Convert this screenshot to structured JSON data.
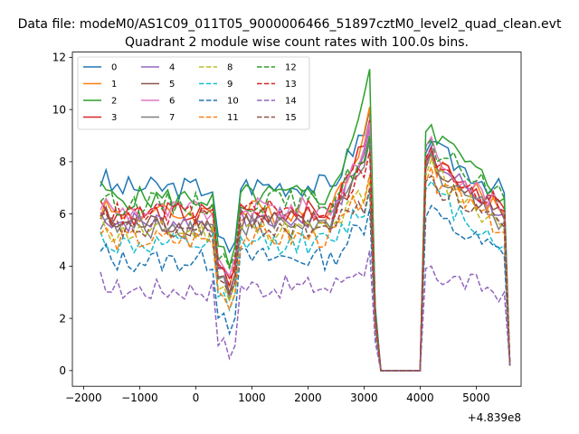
{
  "figure": {
    "suptitle": "Data file: modeM0/AS1C09_011T05_9000006466_51897cztM0_level2_quad_clean.evt",
    "offset_label": "+4.839e8"
  },
  "chart_data": {
    "type": "line",
    "title": "Quadrant 2 module wise count rates with 100.0s bins.",
    "xlabel": "",
    "ylabel": "",
    "xlim": [
      -2200,
      5800
    ],
    "ylim": [
      -0.6,
      12.2
    ],
    "x_offset": 483900000,
    "xticks": [
      -2000,
      -1000,
      0,
      1000,
      2000,
      3000,
      4000,
      5000
    ],
    "xtick_labels": [
      "−2000",
      "−1000",
      "0",
      "1000",
      "2000",
      "3000",
      "4000",
      "5000"
    ],
    "yticks": [
      0,
      2,
      4,
      6,
      8,
      10,
      12
    ],
    "ytick_labels": [
      "0",
      "2",
      "4",
      "6",
      "8",
      "10",
      "12"
    ],
    "legend": {
      "placement": "top-left",
      "columns": 4
    },
    "grid": false,
    "series": [
      {
        "name": "0",
        "color": "#1f77b4",
        "dash": "solid",
        "base": 7.0,
        "peak": 10.0,
        "rebound": 8.5,
        "end": 6.8
      },
      {
        "name": "1",
        "color": "#ff7f0e",
        "dash": "solid",
        "base": 6.0,
        "peak": 10.1,
        "rebound": 8.0,
        "end": 6.0
      },
      {
        "name": "2",
        "color": "#2ca02c",
        "dash": "solid",
        "base": 6.6,
        "peak": 11.55,
        "rebound": 9.2,
        "end": 6.6
      },
      {
        "name": "3",
        "color": "#d62728",
        "dash": "solid",
        "base": 6.0,
        "peak": 9.6,
        "rebound": 8.2,
        "end": 6.2
      },
      {
        "name": "4",
        "color": "#9467bd",
        "dash": "solid",
        "base": 5.7,
        "peak": 9.3,
        "rebound": 8.0,
        "end": 6.0
      },
      {
        "name": "5",
        "color": "#8c564b",
        "dash": "solid",
        "base": 5.6,
        "peak": 9.0,
        "rebound": 7.8,
        "end": 5.8
      },
      {
        "name": "6",
        "color": "#e377c2",
        "dash": "solid",
        "base": 6.1,
        "peak": 9.5,
        "rebound": 8.4,
        "end": 6.1
      },
      {
        "name": "7",
        "color": "#7f7f7f",
        "dash": "solid",
        "base": 5.5,
        "peak": 8.8,
        "rebound": 7.8,
        "end": 5.7
      },
      {
        "name": "8",
        "color": "#bcbd22",
        "dash": "dashed",
        "base": 5.3,
        "peak": 7.4,
        "rebound": 7.6,
        "end": 5.4
      },
      {
        "name": "9",
        "color": "#17becf",
        "dash": "dashed",
        "base": 4.8,
        "peak": 6.9,
        "rebound": 6.8,
        "end": 4.8
      },
      {
        "name": "10",
        "color": "#1f77b4",
        "dash": "dashed",
        "base": 4.2,
        "peak": 6.2,
        "rebound": 5.9,
        "end": 4.4
      },
      {
        "name": "11",
        "color": "#ff7f0e",
        "dash": "dashed",
        "base": 5.0,
        "peak": 7.5,
        "rebound": 7.4,
        "end": 5.3
      },
      {
        "name": "12",
        "color": "#2ca02c",
        "dash": "dashed",
        "base": 6.4,
        "peak": 9.0,
        "rebound": 8.5,
        "end": 6.6
      },
      {
        "name": "13",
        "color": "#d62728",
        "dash": "dashed",
        "base": 6.0,
        "peak": 8.4,
        "rebound": 8.2,
        "end": 6.1
      },
      {
        "name": "14",
        "color": "#9467bd",
        "dash": "dashed",
        "base": 3.1,
        "peak": 4.6,
        "rebound": 3.7,
        "end": 3.0
      },
      {
        "name": "15",
        "color": "#8c564b",
        "dash": "dashed",
        "base": 5.4,
        "peak": 7.0,
        "rebound": 7.2,
        "end": 5.5
      }
    ]
  }
}
